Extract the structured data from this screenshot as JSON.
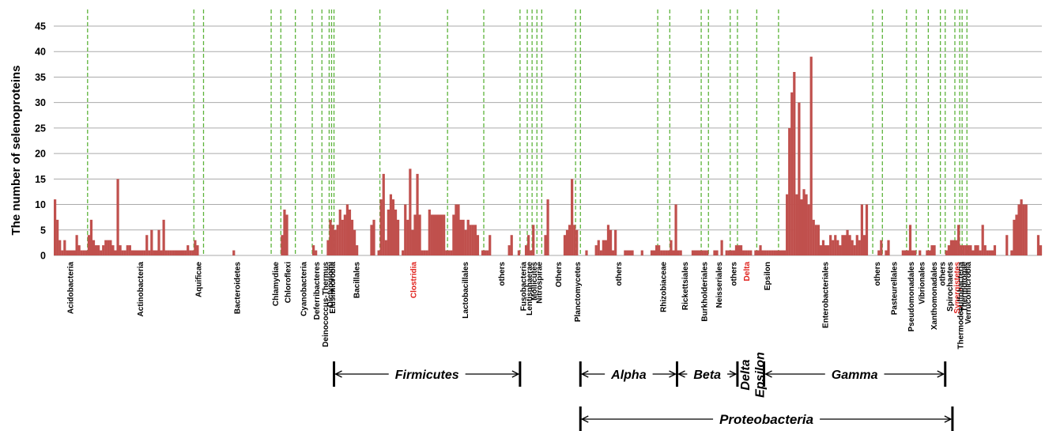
{
  "chart_data": {
    "type": "bar",
    "ylabel": "The number of selenoproteins",
    "ylim": [
      0,
      45
    ],
    "yticks": [
      0,
      5,
      10,
      15,
      20,
      25,
      30,
      35,
      40,
      45
    ],
    "grid": "horizontal",
    "bar_color": "#c0504d",
    "divider_color": "#5cb33a",
    "highlight_color": "#e0201b",
    "groups": [
      {
        "label": "Acidobacteria",
        "range": [
          0,
          14
        ]
      },
      {
        "label": "Actinobacteria",
        "range": [
          14,
          58
        ]
      },
      {
        "label": "Aquificae",
        "range": [
          58,
          62
        ]
      },
      {
        "label": "Bacteroidetes",
        "range": [
          62,
          90
        ]
      },
      {
        "label": "Chlamydiae",
        "range": [
          90,
          94
        ]
      },
      {
        "label": "Chloroflexi",
        "range": [
          94,
          100
        ]
      },
      {
        "label": "Cyanobacteria",
        "range": [
          100,
          107
        ]
      },
      {
        "label": "Deferribacteres",
        "range": [
          107,
          111
        ]
      },
      {
        "label": "Deinococcus-Thermus",
        "range": [
          111,
          114
        ]
      },
      {
        "label": "Dictyoglomi",
        "range": [
          114,
          115
        ]
      },
      {
        "label": "Elusimicrobia",
        "range": [
          115,
          116
        ]
      },
      {
        "label": "Bacillales",
        "range": [
          116,
          135
        ]
      },
      {
        "label": "Clostridia",
        "range": [
          135,
          163
        ],
        "highlight": true
      },
      {
        "label": "Lactobacillales",
        "range": [
          163,
          178
        ]
      },
      {
        "label": "others",
        "range": [
          178,
          193
        ]
      },
      {
        "label": "Fusobacteria",
        "range": [
          193,
          196
        ]
      },
      {
        "label": "Lentisphaerae",
        "range": [
          196,
          198
        ]
      },
      {
        "label": "Mollicutes",
        "range": [
          198,
          200
        ]
      },
      {
        "label": "Nitrospirae",
        "range": [
          200,
          202
        ]
      },
      {
        "label": "Others",
        "range": [
          202,
          216
        ]
      },
      {
        "label": "Planctomycetes",
        "range": [
          216,
          218
        ]
      },
      {
        "label": "others",
        "range": [
          218,
          250
        ]
      },
      {
        "label": "Rhizobiaceae",
        "range": [
          250,
          255
        ]
      },
      {
        "label": "Rickettsiales",
        "range": [
          255,
          268
        ]
      },
      {
        "label": "Burkholderiales",
        "range": [
          268,
          271
        ]
      },
      {
        "label": "Neisseriales",
        "range": [
          271,
          280
        ]
      },
      {
        "label": "others",
        "range": [
          280,
          283
        ]
      },
      {
        "label": "Delta",
        "range": [
          283,
          291
        ],
        "highlight": true
      },
      {
        "label": "Epsilon",
        "range": [
          291,
          300
        ]
      },
      {
        "label": "Enterobacteriales",
        "range": [
          300,
          339
        ]
      },
      {
        "label": "others",
        "range": [
          339,
          343
        ]
      },
      {
        "label": "Pasteurellales",
        "range": [
          343,
          353
        ]
      },
      {
        "label": "Pseudomonadales",
        "range": [
          353,
          357
        ]
      },
      {
        "label": "Vibrionales",
        "range": [
          357,
          362
        ]
      },
      {
        "label": "Xanthomonadales",
        "range": [
          362,
          367
        ]
      },
      {
        "label": "others",
        "range": [
          367,
          369
        ]
      },
      {
        "label": "Spirochaetes",
        "range": [
          369,
          373
        ]
      },
      {
        "label": "Synergistetes",
        "range": [
          373,
          375
        ],
        "highlight": true
      },
      {
        "label": "Thermodesulfobacteria",
        "range": [
          375,
          376
        ]
      },
      {
        "label": "Thermotogae",
        "range": [
          376,
          378
        ]
      },
      {
        "label": "Verrucomicrobia",
        "range": [
          378,
          379
        ]
      }
    ],
    "values": [
      11,
      7,
      3,
      1,
      3,
      1,
      1,
      1,
      1,
      4,
      2,
      1,
      1,
      1,
      4,
      7,
      3,
      2,
      2,
      1,
      2,
      3,
      3,
      3,
      2,
      1,
      15,
      2,
      1,
      1,
      2,
      2,
      1,
      1,
      1,
      1,
      1,
      1,
      4,
      1,
      5,
      1,
      1,
      5,
      1,
      7,
      1,
      1,
      1,
      1,
      1,
      1,
      1,
      1,
      1,
      2,
      1,
      1,
      3,
      2,
      0,
      0,
      0,
      0,
      0,
      0,
      0,
      0,
      0,
      0,
      0,
      0,
      0,
      0,
      1,
      0,
      0,
      0,
      0,
      0,
      0,
      0,
      0,
      0,
      0,
      0,
      0,
      0,
      0,
      0,
      0,
      0,
      0,
      0,
      4,
      9,
      8,
      0,
      0,
      0,
      0,
      0,
      0,
      0,
      0,
      0,
      0,
      2,
      1,
      0,
      0,
      0,
      0,
      3,
      7,
      6,
      5,
      6,
      9,
      7,
      8,
      10,
      9,
      7,
      5,
      2,
      0,
      0,
      0,
      0,
      0,
      6,
      7,
      0,
      1,
      11,
      16,
      3,
      9,
      12,
      11,
      9,
      7,
      0,
      1,
      10,
      7,
      17,
      5,
      8,
      16,
      8,
      1,
      1,
      1,
      9,
      8,
      8,
      8,
      8,
      8,
      8,
      1,
      1,
      1,
      8,
      10,
      10,
      7,
      7,
      5,
      7,
      6,
      6,
      6,
      4,
      0,
      1,
      1,
      1,
      4,
      0,
      0,
      0,
      0,
      0,
      0,
      0,
      2,
      4,
      0,
      0,
      1,
      0,
      0,
      2,
      4,
      1,
      6,
      0,
      0,
      0,
      0,
      4,
      11,
      0,
      0,
      0,
      0,
      0,
      0,
      4,
      5,
      6,
      15,
      6,
      5,
      0,
      0,
      0,
      1,
      0,
      0,
      0,
      2,
      3,
      1,
      3,
      3,
      6,
      5,
      1,
      5,
      0,
      0,
      0,
      1,
      1,
      1,
      1,
      0,
      0,
      0,
      1,
      0,
      0,
      0,
      1,
      1,
      2,
      2,
      1,
      1,
      1,
      1,
      3,
      1,
      10,
      1,
      1,
      0,
      0,
      0,
      0,
      1,
      1,
      1,
      1,
      1,
      1,
      1,
      0,
      0,
      1,
      1,
      0,
      3,
      0,
      1,
      1,
      1,
      1,
      2,
      2,
      2,
      1,
      1,
      1,
      1,
      0,
      1,
      1,
      2,
      1,
      1,
      1,
      1,
      1,
      1,
      1,
      1,
      1,
      1,
      12,
      25,
      32,
      36,
      12,
      30,
      11,
      13,
      12,
      10,
      39,
      7,
      6,
      6,
      2,
      3,
      2,
      2,
      4,
      3,
      4,
      3,
      2,
      4,
      4,
      5,
      4,
      3,
      2,
      4,
      3,
      10,
      4,
      10,
      0,
      0,
      0,
      0,
      1,
      3,
      0,
      1,
      3,
      0,
      0,
      0,
      0,
      0,
      1,
      1,
      1,
      6,
      1,
      1,
      0,
      1,
      0,
      0,
      1,
      1,
      2,
      2,
      0,
      0,
      0,
      0,
      1,
      2,
      3,
      3,
      3,
      6,
      2,
      2,
      2,
      2,
      2,
      1,
      2,
      2,
      1,
      6,
      2,
      1,
      1,
      1,
      2,
      0,
      0,
      0,
      0,
      4,
      0,
      1,
      7,
      8,
      10,
      11,
      10,
      10,
      0,
      0,
      0,
      0,
      4,
      2
    ]
  },
  "clades": [
    {
      "label": "Firmicutes",
      "from": 116,
      "to": 193
    },
    {
      "label": "Alpha",
      "from": 218,
      "to": 258
    },
    {
      "label": "Beta",
      "from": 258,
      "to": 283
    },
    {
      "label": "Delta",
      "vertical": true,
      "at": 286
    },
    {
      "label": "Epsilon",
      "vertical": true,
      "at": 292
    },
    {
      "label": "Gamma",
      "from": 294,
      "to": 369
    },
    {
      "label": "Proteobacteria",
      "from": 218,
      "to": 372
    }
  ]
}
